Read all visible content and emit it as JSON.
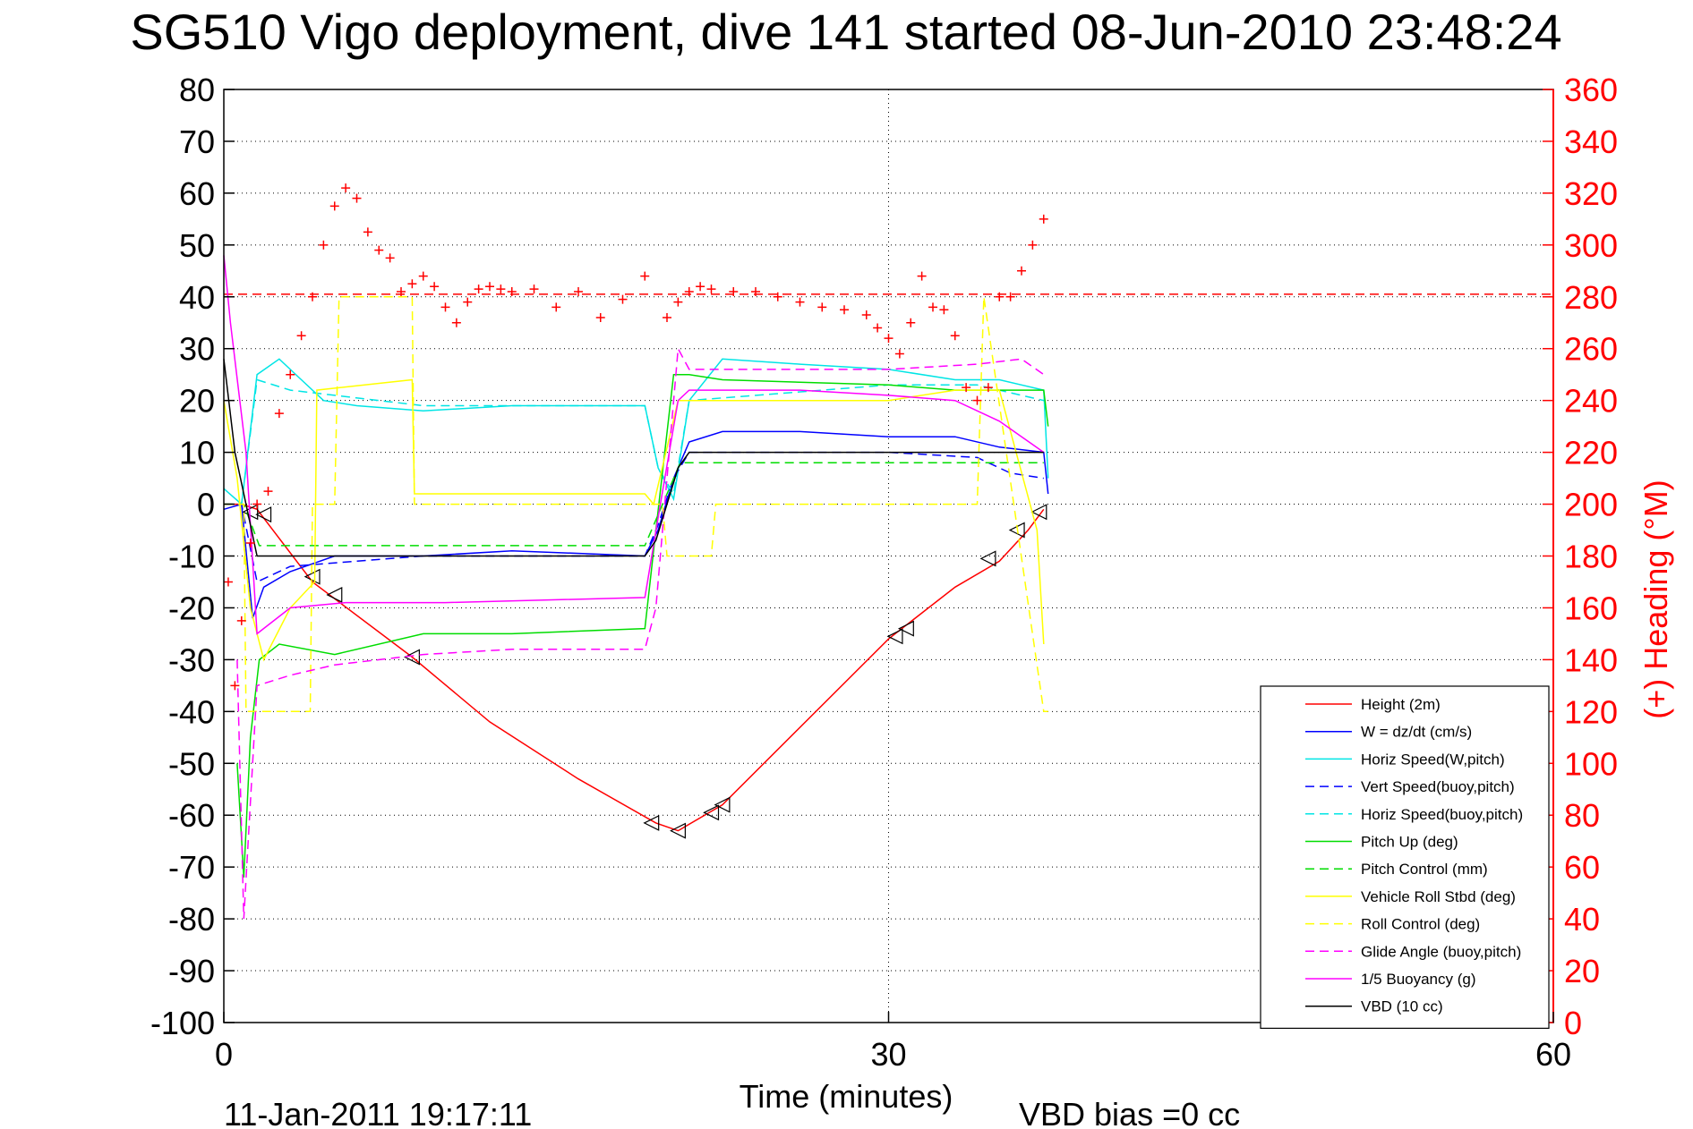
{
  "chart_data": {
    "type": "line",
    "title": "SG510 Vigo deployment, dive 141 started 08-Jun-2010 23:48:24",
    "xlabel": "Time (minutes)",
    "ylabel": "",
    "ylabel_right": "(+) Heading (°M)",
    "xlim": [
      0,
      60
    ],
    "ylim": [
      -100,
      80
    ],
    "ylim_right": [
      0,
      360
    ],
    "x_ticks": [
      "0",
      "30",
      "60"
    ],
    "y_ticks_left": [
      "80",
      "70",
      "60",
      "50",
      "40",
      "30",
      "20",
      "10",
      "0",
      "-10",
      "-20",
      "-30",
      "-40",
      "-50",
      "-60",
      "-70",
      "-80",
      "-90",
      "-100"
    ],
    "y_ticks_right": [
      "360",
      "340",
      "320",
      "300",
      "280",
      "260",
      "240",
      "220",
      "200",
      "180",
      "160",
      "140",
      "120",
      "100",
      "80",
      "60",
      "40",
      "20",
      "0"
    ],
    "grid": "dotted",
    "legend_position": "bottom-right",
    "footer_left": "11-Jan-2011 19:17:11",
    "footer_right": "VBD bias =0 cc",
    "heading_reference": 281,
    "series": [
      {
        "name": "Height (2m)",
        "color": "#ff0000",
        "style": "solid",
        "x": [
          0,
          0.8,
          1.5,
          4,
          8.5,
          12,
          16,
          19.5,
          20.5,
          22.5,
          30,
          33,
          35,
          36.3,
          37
        ],
        "y": [
          0,
          0,
          -1,
          -15,
          -29.5,
          -42,
          -53,
          -61.5,
          -63,
          -58,
          -26,
          -16,
          -11,
          -5,
          -1
        ]
      },
      {
        "name": "W = dz/dt (cm/s)",
        "color": "#0000ff",
        "style": "solid",
        "x": [
          0,
          0.8,
          1.3,
          1.8,
          3,
          5,
          9,
          13,
          19,
          19.6,
          20.3,
          21,
          22.5,
          26,
          30,
          33,
          35,
          37,
          37.2
        ],
        "y": [
          -1,
          0,
          -22,
          -16,
          -13,
          -10,
          -10,
          -9,
          -10,
          -5,
          5,
          12,
          14,
          14,
          13,
          13,
          11,
          10,
          2
        ]
      },
      {
        "name": "Horiz Speed(W,pitch)",
        "color": "#00e5e5",
        "style": "solid",
        "x": [
          0,
          0.8,
          1.5,
          2.5,
          3.5,
          4.5,
          6,
          9,
          13,
          19,
          19.6,
          20.3,
          21,
          22.5,
          26,
          30,
          33,
          35,
          37,
          37.2
        ],
        "y": [
          3,
          0,
          25,
          28,
          24,
          20,
          19,
          18,
          19,
          19,
          7,
          1,
          20,
          28,
          27,
          26,
          24,
          24,
          22,
          5
        ]
      },
      {
        "name": "Vert Speed(buoy,pitch)",
        "color": "#0000ff",
        "style": "dashed",
        "x": [
          0,
          0.8,
          1.5,
          3,
          9,
          19,
          19.6,
          20.3,
          21,
          30,
          34,
          35.5,
          37
        ],
        "y": [
          0,
          0,
          -15,
          -12,
          -10,
          -10,
          -4,
          5,
          10,
          10,
          9,
          6,
          5
        ]
      },
      {
        "name": "Horiz Speed(buoy,pitch)",
        "color": "#00e5e5",
        "style": "dashed",
        "x": [
          0,
          0.8,
          1.5,
          3,
          9,
          19,
          19.6,
          20.3,
          21,
          30,
          34,
          37
        ],
        "y": [
          0,
          0,
          24,
          22,
          19,
          19,
          7,
          2,
          20,
          23,
          23,
          20
        ]
      },
      {
        "name": "Pitch Up (deg)",
        "color": "#00dd00",
        "style": "solid",
        "x": [
          0.6,
          0.9,
          1.2,
          1.6,
          2.5,
          5,
          9,
          13,
          19,
          19.5,
          20.3,
          21,
          22.5,
          30,
          33,
          35,
          37,
          37.2
        ],
        "y": [
          -50,
          -72,
          -45,
          -30,
          -27,
          -29,
          -25,
          -25,
          -24,
          -5,
          25,
          25,
          24,
          23,
          22,
          22,
          22,
          15
        ]
      },
      {
        "name": "Pitch Control (mm)",
        "color": "#00dd00",
        "style": "dashed",
        "x": [
          0,
          0.9,
          1.6,
          19,
          20.6,
          21,
          34,
          37
        ],
        "y": [
          0,
          0,
          -8,
          -8,
          8,
          8,
          8,
          8
        ]
      },
      {
        "name": "Vehicle Roll Stbd (deg)",
        "color": "#ffff00",
        "style": "solid",
        "x": [
          0,
          0.6,
          1.2,
          1.8,
          3,
          4.1,
          4.2,
          8.5,
          8.6,
          19,
          19.4,
          20.5,
          21,
          30,
          33,
          35,
          36.7,
          37
        ],
        "y": [
          20,
          5,
          -20,
          -30,
          -20,
          -15,
          22,
          24,
          2,
          2,
          0,
          20,
          20,
          20,
          22,
          22,
          -5,
          -27
        ]
      },
      {
        "name": "Roll Control (deg)",
        "color": "#ffff00",
        "style": "dashed",
        "x": [
          0,
          0.9,
          1,
          3.9,
          4,
          5,
          5.2,
          8.5,
          8.6,
          19.8,
          20,
          22,
          22.2,
          30,
          30.3,
          34,
          34.3,
          37,
          37.2
        ],
        "y": [
          0,
          0,
          -40,
          -40,
          0,
          0,
          40,
          40,
          0,
          0,
          -10,
          -10,
          0,
          0,
          0,
          0,
          40,
          -40,
          -40
        ]
      },
      {
        "name": "Glide Angle (buoy,pitch)",
        "color": "#ff00ff",
        "style": "dashed",
        "x": [
          0.6,
          0.9,
          1.5,
          3,
          5,
          9,
          13,
          19,
          19.5,
          20.5,
          21,
          30,
          34,
          36,
          37
        ],
        "y": [
          -30,
          -80,
          -35,
          -33,
          -31,
          -29,
          -28,
          -28,
          -20,
          30,
          26,
          26,
          27,
          28,
          25
        ]
      },
      {
        "name": "1/5 Buoyancy (g)",
        "color": "#ff00ff",
        "style": "solid",
        "x": [
          0,
          0.3,
          1,
          1.5,
          3,
          5.5,
          10,
          19,
          19.7,
          20.5,
          21,
          26,
          30,
          33,
          35,
          37
        ],
        "y": [
          48,
          35,
          10,
          -25,
          -20,
          -19,
          -19,
          -18,
          0,
          20,
          22,
          22,
          21,
          20,
          16,
          10
        ]
      },
      {
        "name": "VBD (10 cc)",
        "color": "#000000",
        "style": "solid",
        "x": [
          0,
          0.5,
          1,
          1.5,
          3,
          9,
          19,
          19.5,
          20.5,
          21,
          30,
          34,
          37
        ],
        "y": [
          28,
          10,
          0,
          -10,
          -10,
          -10,
          -10,
          -7,
          7,
          10,
          10,
          10,
          10
        ]
      },
      {
        "name": "",
        "color": "#ff0000",
        "style": "markers-plus",
        "axis": "right",
        "x": [
          0.2,
          0.5,
          0.8,
          1.2,
          1.5,
          2,
          2.5,
          3,
          3.5,
          4,
          4.5,
          5,
          5.5,
          6,
          6.5,
          7,
          7.5,
          8,
          8.5,
          9,
          9.5,
          10,
          10.5,
          11,
          11.5,
          12,
          12.5,
          13,
          14,
          15,
          16,
          17,
          18,
          19,
          20,
          20.5,
          21,
          21.5,
          22,
          23,
          24,
          25,
          26,
          27,
          28,
          29,
          29.5,
          30,
          30.5,
          31,
          31.5,
          32,
          32.5,
          33,
          33.5,
          34,
          34.5,
          35,
          35.5,
          36,
          36.5,
          37
        ],
        "y": [
          170,
          130,
          155,
          185,
          200,
          205,
          235,
          250,
          265,
          280,
          300,
          315,
          322,
          318,
          305,
          298,
          295,
          282,
          285,
          288,
          284,
          276,
          270,
          278,
          283,
          284,
          283,
          282,
          283,
          276,
          282,
          272,
          279,
          288,
          272,
          278,
          282,
          284,
          283,
          282,
          282,
          280,
          278,
          276,
          275,
          273,
          268,
          264,
          258,
          270,
          288,
          276,
          275,
          265,
          245,
          240,
          245,
          280,
          280,
          290,
          300,
          310
        ]
      }
    ]
  }
}
